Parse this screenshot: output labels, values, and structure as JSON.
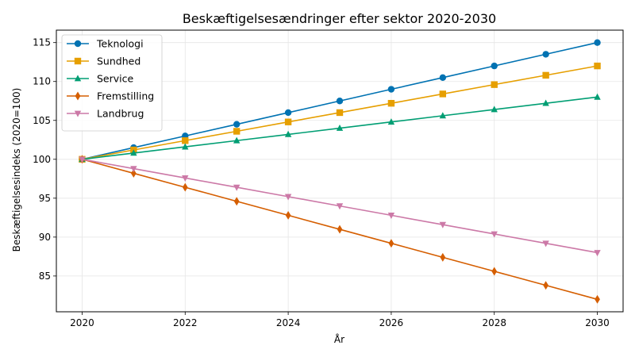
{
  "chart_data": {
    "type": "line",
    "title": "Beskæftigelsesændringer efter sektor 2020-2030",
    "xlabel": "År",
    "ylabel": "Beskæftigelsesindeks (2020=100)",
    "x": [
      2020,
      2021,
      2022,
      2023,
      2024,
      2025,
      2026,
      2027,
      2028,
      2029,
      2030
    ],
    "xlim": [
      2019.5,
      2030.5
    ],
    "ylim": [
      80.4,
      116.6
    ],
    "xticks": [
      2020,
      2022,
      2024,
      2026,
      2028,
      2030
    ],
    "yticks": [
      85,
      90,
      95,
      100,
      105,
      110,
      115
    ],
    "grid": true,
    "legend_position": "top-left",
    "series": [
      {
        "name": "Teknologi",
        "color": "#0072B2",
        "marker": "circle",
        "values": [
          100,
          101.5,
          103,
          104.5,
          106,
          107.5,
          109,
          110.5,
          112,
          113.5,
          115
        ]
      },
      {
        "name": "Sundhed",
        "color": "#E69F00",
        "marker": "square",
        "values": [
          100,
          101.2,
          102.4,
          103.6,
          104.8,
          106,
          107.2,
          108.4,
          109.6,
          110.8,
          112
        ]
      },
      {
        "name": "Service",
        "color": "#009E73",
        "marker": "triangle-up",
        "values": [
          100,
          100.8,
          101.6,
          102.4,
          103.2,
          104,
          104.8,
          105.6,
          106.4,
          107.2,
          108
        ]
      },
      {
        "name": "Fremstilling",
        "color": "#D55E00",
        "marker": "diamond",
        "values": [
          100,
          98.2,
          96.4,
          94.6,
          92.8,
          91,
          89.2,
          87.4,
          85.6,
          83.8,
          82
        ]
      },
      {
        "name": "Landbrug",
        "color": "#CC79A7",
        "marker": "triangle-down",
        "values": [
          100,
          98.8,
          97.6,
          96.4,
          95.2,
          94,
          92.8,
          91.6,
          90.4,
          89.2,
          88
        ]
      }
    ]
  }
}
